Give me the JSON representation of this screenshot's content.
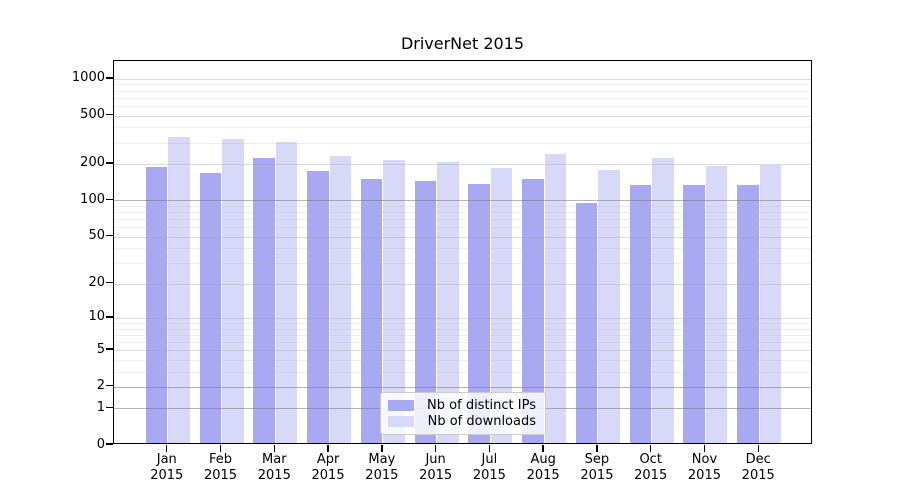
{
  "title": "DriverNet 2015",
  "chart_data": {
    "type": "bar",
    "title": "DriverNet 2015",
    "categories": [
      "Jan",
      "Feb",
      "Mar",
      "Apr",
      "May",
      "Jun",
      "Jul",
      "Aug",
      "Sep",
      "Oct",
      "Nov",
      "Dec"
    ],
    "category_year": "2015",
    "series": [
      {
        "name": "Nb of distinct IPs",
        "color": "#a9a9f3",
        "values": [
          180,
          162,
          215,
          168,
          145,
          139,
          131,
          144,
          91,
          128,
          130,
          128
        ]
      },
      {
        "name": "Nb of downloads",
        "color": "#d8d8f8",
        "values": [
          320,
          308,
          291,
          222,
          207,
          201,
          178,
          231,
          172,
          216,
          185,
          190
        ]
      }
    ],
    "xlabel": "",
    "ylabel": "",
    "yscale": "log1p",
    "ylim": [
      0,
      1400
    ],
    "yticks": [
      0,
      1,
      2,
      5,
      10,
      20,
      50,
      100,
      200,
      500,
      1000
    ],
    "minor_gridlines": [
      3,
      4,
      6,
      7,
      8,
      9,
      30,
      40,
      60,
      70,
      80,
      90,
      300,
      400,
      600,
      700,
      800,
      900
    ],
    "emphasized_gridlines": [
      1,
      2,
      100
    ],
    "grid": true,
    "legend_position": "bottom-center",
    "style": {
      "grid_color_strong": "rgba(120,120,120,0.55)",
      "grid_color_major": "rgba(160,160,160,0.38)",
      "grid_color_minor": "rgba(175,175,175,0.22)",
      "spine_color": "#000000"
    }
  },
  "legend": {
    "item_1": "Nb of distinct IPs",
    "item_2": "Nb of downloads"
  }
}
